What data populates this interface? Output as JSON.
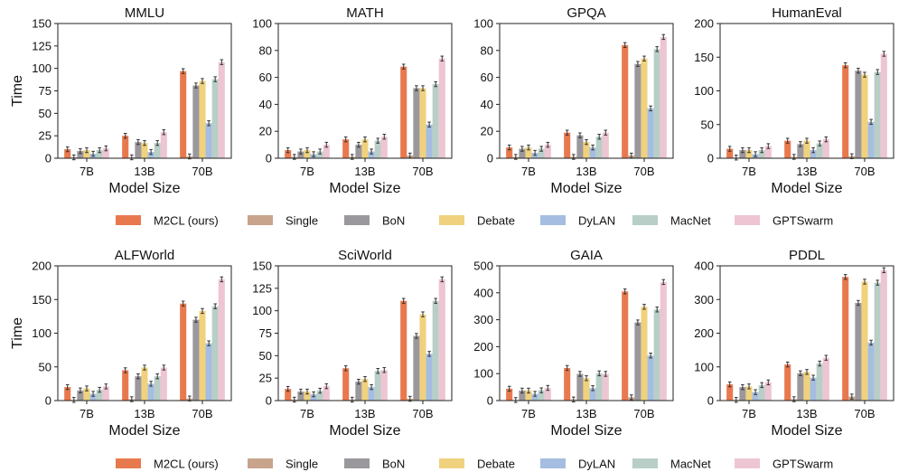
{
  "legend": [
    {
      "name": "M2CL (ours)",
      "color": "#E8794F"
    },
    {
      "name": "Single",
      "color": "#C8A48C"
    },
    {
      "name": "BoN",
      "color": "#9B989D"
    },
    {
      "name": "Debate",
      "color": "#F0D27E"
    },
    {
      "name": "DyLAN",
      "color": "#A5BDE0"
    },
    {
      "name": "MacNet",
      "color": "#B8CEC6"
    },
    {
      "name": "GPTSwarm",
      "color": "#EEC5D2"
    }
  ],
  "chart_data": [
    {
      "type": "bar",
      "title": "MMLU",
      "xlabel": "Model Size",
      "ylabel": "Time",
      "categories": [
        "7B",
        "13B",
        "70B"
      ],
      "ylim": [
        0,
        150
      ],
      "yticks": [
        0,
        25,
        50,
        75,
        100,
        125,
        150
      ],
      "series": [
        {
          "name": "M2CL (ours)",
          "values": [
            10,
            25,
            97
          ]
        },
        {
          "name": "Single",
          "values": [
            1,
            1,
            2
          ]
        },
        {
          "name": "BoN",
          "values": [
            8,
            18,
            81
          ]
        },
        {
          "name": "Debate",
          "values": [
            9,
            17,
            86
          ]
        },
        {
          "name": "DyLAN",
          "values": [
            5,
            7,
            39
          ]
        },
        {
          "name": "MacNet",
          "values": [
            9,
            17,
            88
          ]
        },
        {
          "name": "GPTSwarm",
          "values": [
            11,
            29,
            107
          ]
        }
      ]
    },
    {
      "type": "bar",
      "title": "MATH",
      "xlabel": "Model Size",
      "ylabel": "",
      "categories": [
        "7B",
        "13B",
        "70B"
      ],
      "ylim": [
        0,
        100
      ],
      "yticks": [
        0,
        20,
        40,
        60,
        80,
        100
      ],
      "series": [
        {
          "name": "M2CL (ours)",
          "values": [
            6,
            14,
            68
          ]
        },
        {
          "name": "Single",
          "values": [
            1,
            1,
            2
          ]
        },
        {
          "name": "BoN",
          "values": [
            5,
            10,
            52
          ]
        },
        {
          "name": "Debate",
          "values": [
            6,
            14,
            52
          ]
        },
        {
          "name": "DyLAN",
          "values": [
            3,
            5,
            25
          ]
        },
        {
          "name": "MacNet",
          "values": [
            5,
            13,
            55
          ]
        },
        {
          "name": "GPTSwarm",
          "values": [
            10,
            16,
            74
          ]
        }
      ]
    },
    {
      "type": "bar",
      "title": "GPQA",
      "xlabel": "Model Size",
      "ylabel": "",
      "categories": [
        "7B",
        "13B",
        "70B"
      ],
      "ylim": [
        0,
        100
      ],
      "yticks": [
        0,
        20,
        40,
        60,
        80,
        100
      ],
      "series": [
        {
          "name": "M2CL (ours)",
          "values": [
            8,
            19,
            84
          ]
        },
        {
          "name": "Single",
          "values": [
            1,
            1,
            2
          ]
        },
        {
          "name": "BoN",
          "values": [
            7,
            17,
            70
          ]
        },
        {
          "name": "Debate",
          "values": [
            8,
            12,
            74
          ]
        },
        {
          "name": "DyLAN",
          "values": [
            4,
            8,
            37
          ]
        },
        {
          "name": "MacNet",
          "values": [
            7,
            16,
            81
          ]
        },
        {
          "name": "GPTSwarm",
          "values": [
            10,
            19,
            90
          ]
        }
      ]
    },
    {
      "type": "bar",
      "title": "HumanEval",
      "xlabel": "Model Size",
      "ylabel": "",
      "categories": [
        "7B",
        "13B",
        "70B"
      ],
      "ylim": [
        0,
        200
      ],
      "yticks": [
        0,
        50,
        100,
        150,
        200
      ],
      "series": [
        {
          "name": "M2CL (ours)",
          "values": [
            14,
            26,
            138
          ]
        },
        {
          "name": "Single",
          "values": [
            1,
            2,
            3
          ]
        },
        {
          "name": "BoN",
          "values": [
            12,
            21,
            130
          ]
        },
        {
          "name": "Debate",
          "values": [
            12,
            26,
            124
          ]
        },
        {
          "name": "DyLAN",
          "values": [
            6,
            12,
            54
          ]
        },
        {
          "name": "MacNet",
          "values": [
            12,
            22,
            128
          ]
        },
        {
          "name": "GPTSwarm",
          "values": [
            18,
            28,
            155
          ]
        }
      ]
    },
    {
      "type": "bar",
      "title": "ALFWorld",
      "xlabel": "Model Size",
      "ylabel": "Time",
      "categories": [
        "7B",
        "13B",
        "70B"
      ],
      "ylim": [
        0,
        200
      ],
      "yticks": [
        0,
        50,
        100,
        150,
        200
      ],
      "series": [
        {
          "name": "M2CL (ours)",
          "values": [
            20,
            45,
            144
          ]
        },
        {
          "name": "Single",
          "values": [
            1,
            2,
            3
          ]
        },
        {
          "name": "BoN",
          "values": [
            15,
            36,
            120
          ]
        },
        {
          "name": "Debate",
          "values": [
            18,
            49,
            133
          ]
        },
        {
          "name": "DyLAN",
          "values": [
            10,
            25,
            85
          ]
        },
        {
          "name": "MacNet",
          "values": [
            16,
            36,
            140
          ]
        },
        {
          "name": "GPTSwarm",
          "values": [
            21,
            49,
            180
          ]
        }
      ]
    },
    {
      "type": "bar",
      "title": "SciWorld",
      "xlabel": "Model Size",
      "ylabel": "",
      "categories": [
        "7B",
        "13B",
        "70B"
      ],
      "ylim": [
        0,
        150
      ],
      "yticks": [
        0,
        25,
        50,
        75,
        100,
        125,
        150
      ],
      "series": [
        {
          "name": "M2CL (ours)",
          "values": [
            13,
            36,
            111
          ]
        },
        {
          "name": "Single",
          "values": [
            1,
            1,
            2
          ]
        },
        {
          "name": "BoN",
          "values": [
            10,
            21,
            72
          ]
        },
        {
          "name": "Debate",
          "values": [
            10,
            24,
            96
          ]
        },
        {
          "name": "DyLAN",
          "values": [
            7,
            15,
            52
          ]
        },
        {
          "name": "MacNet",
          "values": [
            11,
            33,
            111
          ]
        },
        {
          "name": "GPTSwarm",
          "values": [
            16,
            34,
            135
          ]
        }
      ]
    },
    {
      "type": "bar",
      "title": "GAIA",
      "xlabel": "Model Size",
      "ylabel": "",
      "categories": [
        "7B",
        "13B",
        "70B"
      ],
      "ylim": [
        0,
        500
      ],
      "yticks": [
        0,
        100,
        200,
        300,
        400,
        500
      ],
      "series": [
        {
          "name": "M2CL (ours)",
          "values": [
            44,
            121,
            405
          ]
        },
        {
          "name": "Single",
          "values": [
            2,
            4,
            12
          ]
        },
        {
          "name": "BoN",
          "values": [
            37,
            99,
            290
          ]
        },
        {
          "name": "Debate",
          "values": [
            37,
            83,
            348
          ]
        },
        {
          "name": "DyLAN",
          "values": [
            25,
            46,
            167
          ]
        },
        {
          "name": "MacNet",
          "values": [
            38,
            101,
            338
          ]
        },
        {
          "name": "GPTSwarm",
          "values": [
            47,
            99,
            440
          ]
        }
      ]
    },
    {
      "type": "bar",
      "title": "PDDL",
      "xlabel": "Model Size",
      "ylabel": "",
      "categories": [
        "7B",
        "13B",
        "70B"
      ],
      "ylim": [
        0,
        400
      ],
      "yticks": [
        0,
        100,
        200,
        300,
        400
      ],
      "series": [
        {
          "name": "M2CL (ours)",
          "values": [
            48,
            107,
            367
          ]
        },
        {
          "name": "Single",
          "values": [
            2,
            4,
            12
          ]
        },
        {
          "name": "BoN",
          "values": [
            40,
            81,
            290
          ]
        },
        {
          "name": "Debate",
          "values": [
            42,
            85,
            353
          ]
        },
        {
          "name": "DyLAN",
          "values": [
            25,
            68,
            172
          ]
        },
        {
          "name": "MacNet",
          "values": [
            46,
            110,
            350
          ]
        },
        {
          "name": "GPTSwarm",
          "values": [
            54,
            127,
            387
          ]
        }
      ]
    }
  ]
}
